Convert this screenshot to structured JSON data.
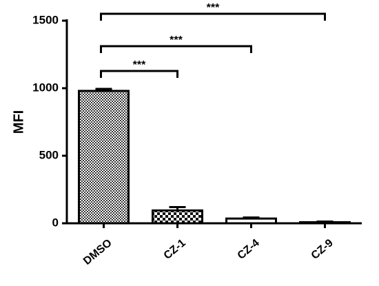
{
  "chart_data": {
    "type": "bar",
    "y_label": "MFI",
    "categories": [
      "DMSO",
      "CZ-1",
      "CZ-4",
      "CZ-9"
    ],
    "values": [
      980,
      95,
      35,
      8
    ],
    "errors": [
      15,
      25,
      8,
      5
    ],
    "ylim": [
      0,
      1500
    ],
    "yticks": [
      0,
      500,
      1000,
      1500
    ],
    "comparisons": [
      {
        "from": "DMSO",
        "to": "CZ-1",
        "label": "***"
      },
      {
        "from": "DMSO",
        "to": "CZ-4",
        "label": "***"
      },
      {
        "from": "DMSO",
        "to": "CZ-9",
        "label": "***"
      }
    ]
  }
}
